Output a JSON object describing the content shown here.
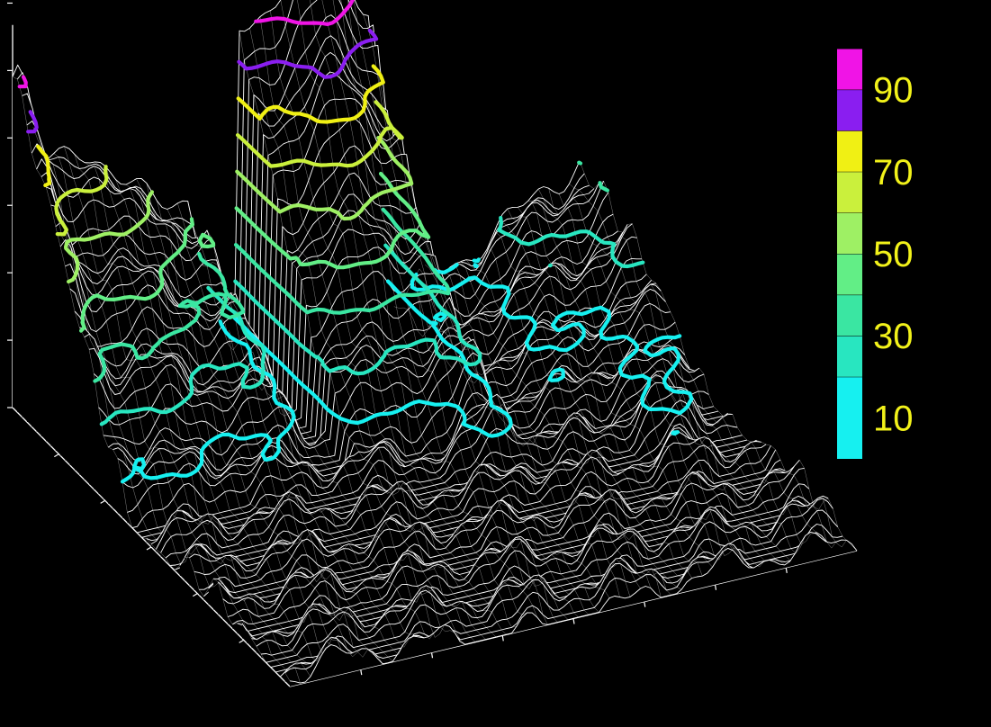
{
  "chart_data": {
    "type": "surface",
    "title": "",
    "xlabel": "",
    "ylabel": "",
    "zlabel": "",
    "grid": false,
    "background": "#000000",
    "mesh_color": "#ffffff",
    "zlim": [
      0,
      100
    ],
    "colorbar": {
      "placement": "right",
      "label_color": "#f2f21a",
      "tick_labels": [
        "10",
        "30",
        "50",
        "70",
        "90"
      ],
      "bins": [
        {
          "from": 0,
          "to": 20,
          "color": "#16f0f0"
        },
        {
          "from": 20,
          "to": 30,
          "color": "#28e6c0"
        },
        {
          "from": 30,
          "to": 40,
          "color": "#3ae6a2"
        },
        {
          "from": 40,
          "to": 50,
          "color": "#62ee86"
        },
        {
          "from": 50,
          "to": 60,
          "color": "#9ef064"
        },
        {
          "from": 60,
          "to": 70,
          "color": "#caf03c"
        },
        {
          "from": 70,
          "to": 80,
          "color": "#f0f014"
        },
        {
          "from": 80,
          "to": 90,
          "color": "#8a1ef0"
        },
        {
          "from": 90,
          "to": 100,
          "color": "#f014e6"
        }
      ]
    },
    "contour_levels": [
      {
        "level": 10,
        "color": "#16f0f0"
      },
      {
        "level": 20,
        "color": "#28e6c0"
      },
      {
        "level": 30,
        "color": "#3ae6a2"
      },
      {
        "level": 40,
        "color": "#62ee86"
      },
      {
        "level": 50,
        "color": "#9ef064"
      },
      {
        "level": 60,
        "color": "#caf03c"
      },
      {
        "level": 70,
        "color": "#f0f014"
      },
      {
        "level": 80,
        "color": "#8a1ef0"
      },
      {
        "level": 90,
        "color": "#f014e6"
      }
    ]
  }
}
